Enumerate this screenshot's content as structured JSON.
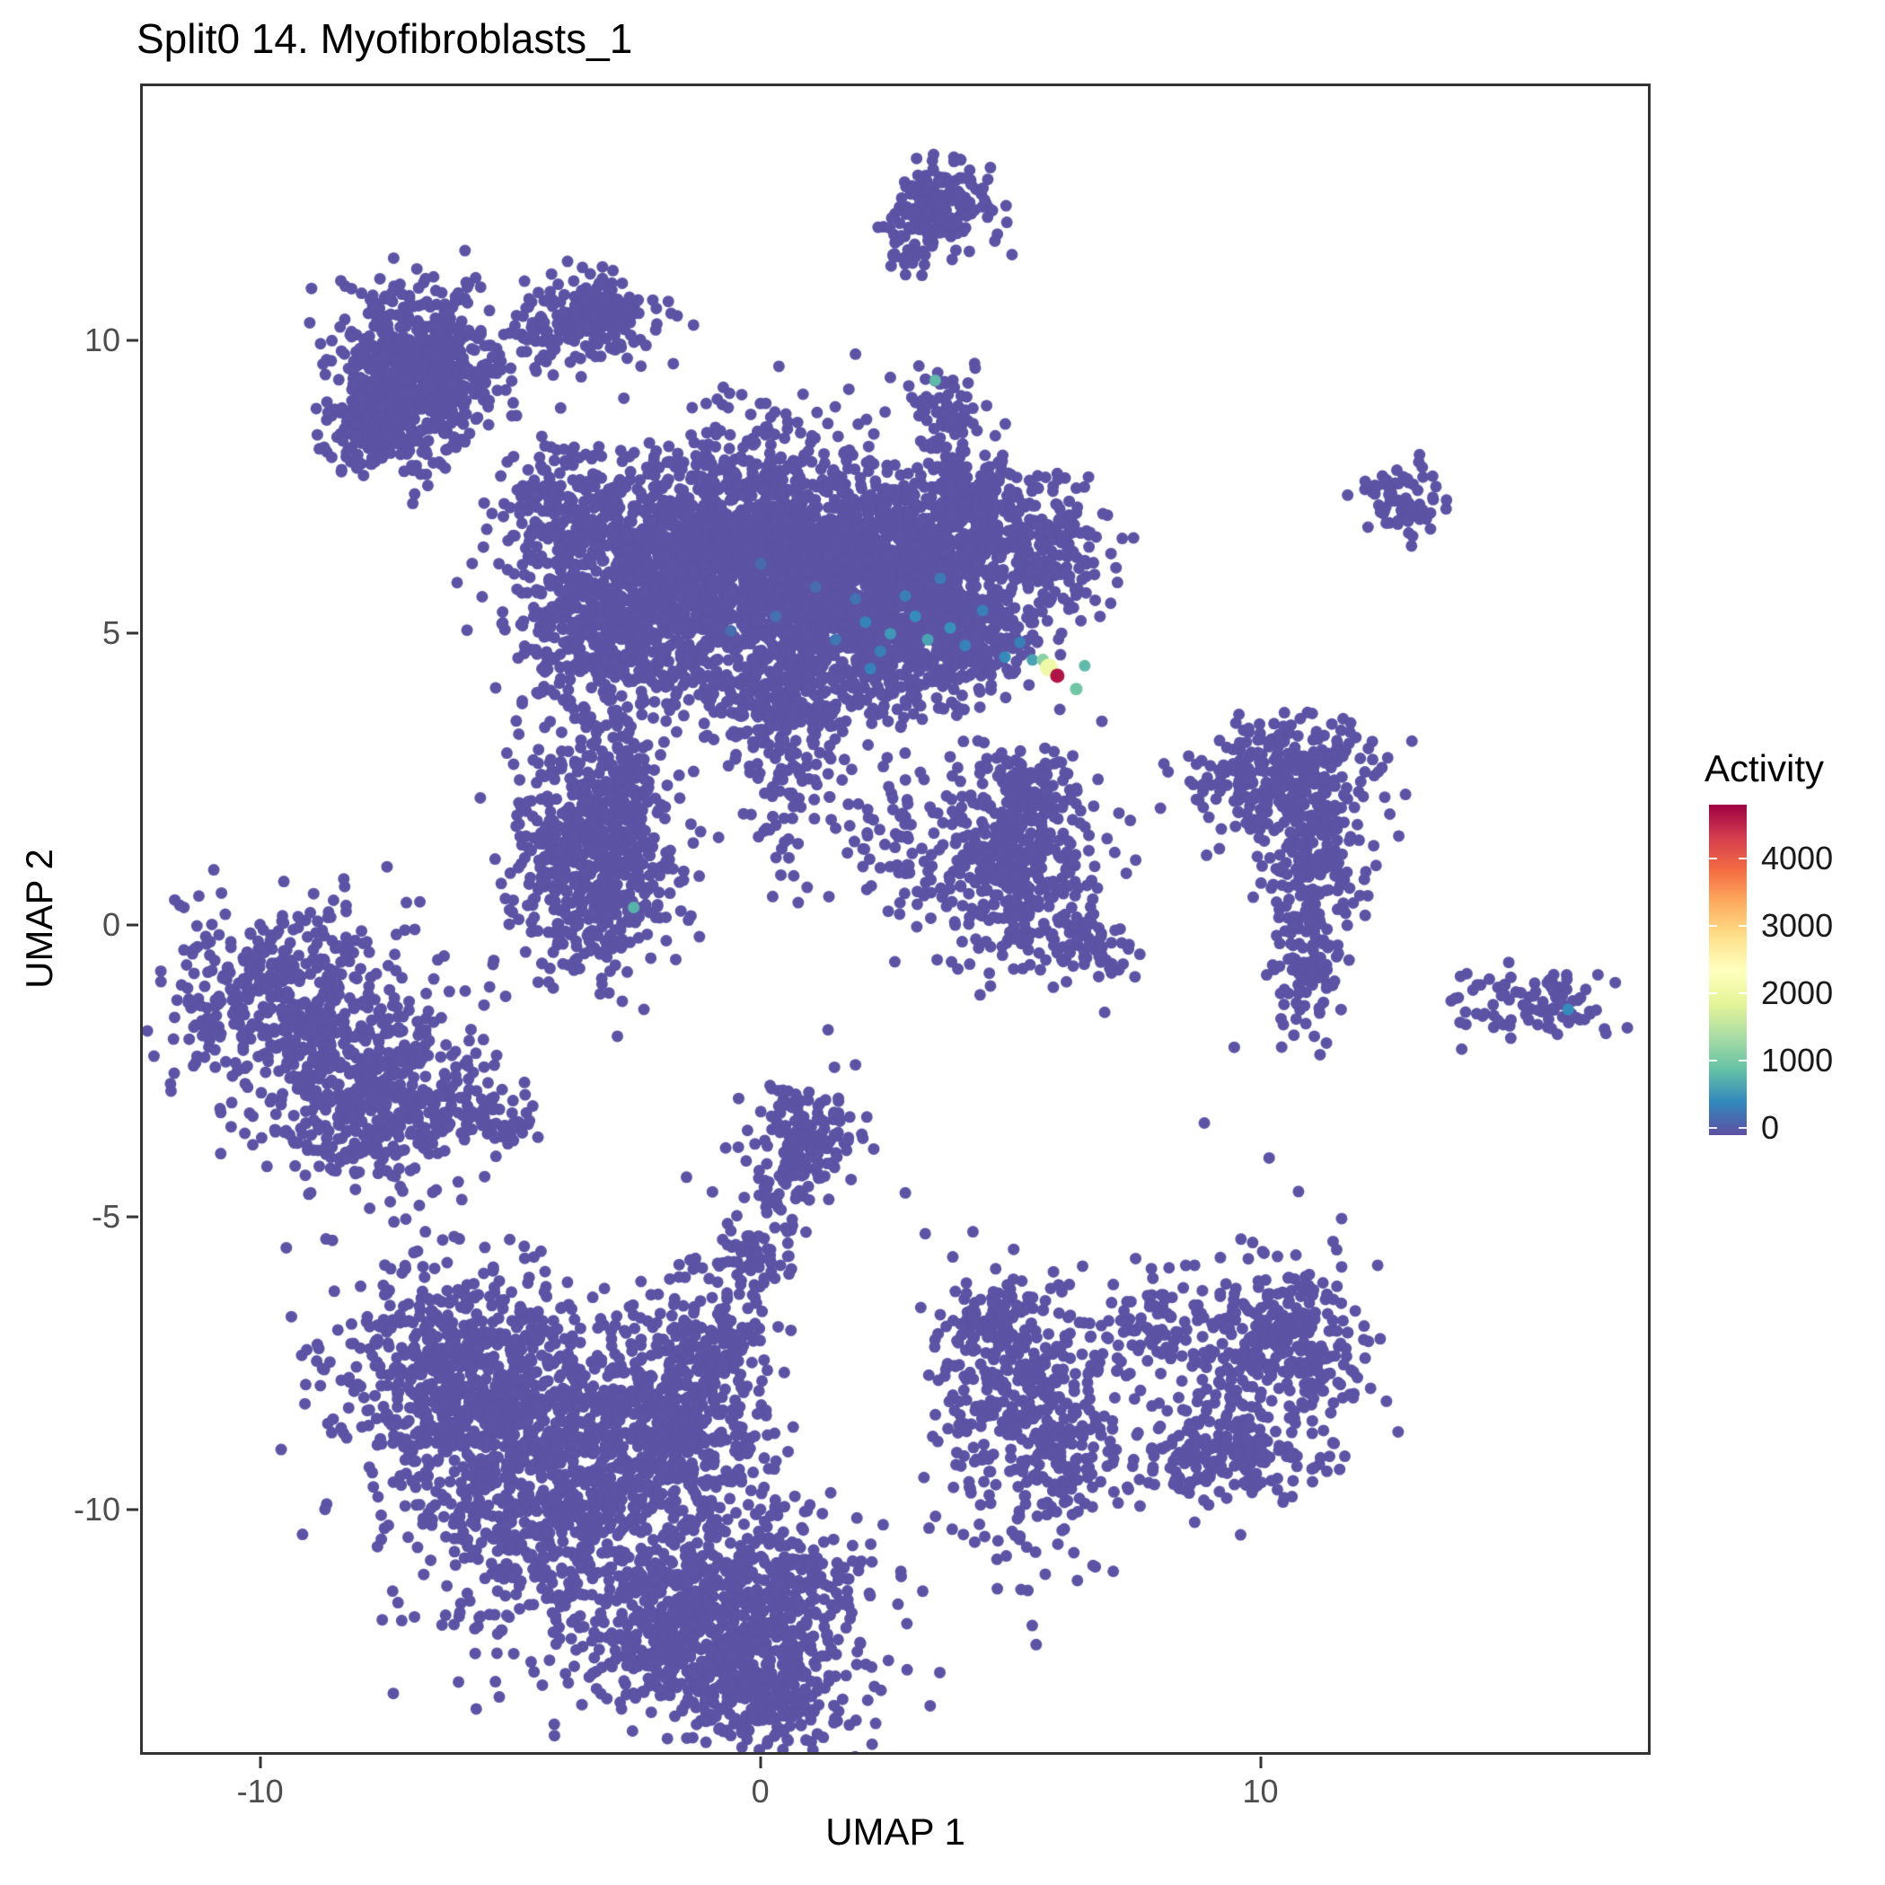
{
  "title": "Split0 14. Myofibroblasts_1",
  "axes": {
    "xlabel": "UMAP 1",
    "ylabel": "UMAP 2"
  },
  "legend": {
    "title": "Activity",
    "ticks": [
      0,
      1000,
      2000,
      3000,
      4000
    ],
    "vmin": -100,
    "vmax": 4800,
    "colormap_stops": [
      "#5e4fa2",
      "#3288bd",
      "#66c2a5",
      "#abdda4",
      "#e6f598",
      "#ffffbf",
      "#fee08b",
      "#fdae61",
      "#f46d43",
      "#d53e4f",
      "#9e0142"
    ]
  },
  "chart_data": {
    "type": "scatter",
    "title": "Split0 14. Myofibroblasts_1",
    "xlabel": "UMAP 1",
    "ylabel": "UMAP 2",
    "xlim": [
      -12.4,
      17.8
    ],
    "ylim": [
      -14.2,
      14.4
    ],
    "xticks": [
      -10,
      0,
      10
    ],
    "yticks": [
      -10,
      -5,
      0,
      5,
      10
    ],
    "grid": false,
    "legend_position": "right",
    "base_color": "#5c53a5",
    "point_radius": 6.5,
    "clusters_columns": [
      "cx",
      "cy",
      "sx",
      "sy",
      "n"
    ],
    "clusters": [
      [
        3.6,
        12.4,
        0.55,
        0.38,
        160
      ],
      [
        2.95,
        11.65,
        0.25,
        0.2,
        30
      ],
      [
        -6.9,
        9.5,
        0.85,
        0.72,
        650
      ],
      [
        -7.7,
        8.5,
        0.5,
        0.4,
        120
      ],
      [
        -3.3,
        10.4,
        0.55,
        0.4,
        170
      ],
      [
        -4.4,
        10.2,
        0.3,
        0.3,
        50
      ],
      [
        3.7,
        8.8,
        0.3,
        0.55,
        70
      ],
      [
        -3.9,
        7.2,
        0.6,
        0.5,
        180
      ],
      [
        -2.9,
        5.4,
        1.05,
        0.95,
        750
      ],
      [
        -0.4,
        6.4,
        1.35,
        1.05,
        1250
      ],
      [
        1.6,
        5.9,
        1.2,
        0.95,
        850
      ],
      [
        3.5,
        6.1,
        0.95,
        0.85,
        520
      ],
      [
        4.3,
        7.4,
        0.5,
        0.45,
        150
      ],
      [
        5.8,
        6.5,
        0.6,
        0.65,
        200
      ],
      [
        2.9,
        4.6,
        0.85,
        0.55,
        280
      ],
      [
        4.6,
        4.9,
        0.5,
        0.4,
        100
      ],
      [
        0.3,
        3.8,
        0.75,
        0.5,
        220
      ],
      [
        0.45,
        2.3,
        0.28,
        0.85,
        70
      ],
      [
        12.9,
        7.25,
        0.38,
        0.3,
        70
      ],
      [
        -3.4,
        1.1,
        0.8,
        0.95,
        620
      ],
      [
        -2.7,
        2.4,
        0.4,
        0.4,
        80
      ],
      [
        2.5,
        1.8,
        0.7,
        0.8,
        60
      ],
      [
        5.0,
        1.1,
        0.9,
        0.85,
        420
      ],
      [
        5.4,
        2.4,
        0.5,
        0.4,
        80
      ],
      [
        6.6,
        -0.3,
        0.35,
        0.3,
        60
      ],
      [
        10.5,
        2.5,
        0.95,
        0.5,
        280
      ],
      [
        11.0,
        1.0,
        0.45,
        0.8,
        200
      ],
      [
        10.9,
        -0.9,
        0.3,
        0.55,
        80
      ],
      [
        15.4,
        -1.35,
        0.8,
        0.28,
        90
      ],
      [
        -9.4,
        -1.4,
        1.25,
        0.85,
        480
      ],
      [
        -7.8,
        -2.9,
        1.0,
        0.8,
        420
      ],
      [
        -6.1,
        -3.3,
        0.6,
        0.3,
        70
      ],
      [
        -5.0,
        -3.5,
        0.3,
        0.2,
        25
      ],
      [
        0.85,
        -3.5,
        0.5,
        0.42,
        140
      ],
      [
        0.5,
        -4.5,
        0.3,
        0.4,
        50
      ],
      [
        -0.2,
        -5.7,
        0.35,
        0.6,
        70
      ],
      [
        -1.0,
        -6.9,
        0.45,
        0.7,
        90
      ],
      [
        -6.4,
        -7.6,
        1.1,
        0.95,
        480
      ],
      [
        -4.0,
        -9.2,
        1.6,
        1.4,
        1250
      ],
      [
        -1.6,
        -8.3,
        0.8,
        0.8,
        300
      ],
      [
        -0.3,
        -11.8,
        1.25,
        1.0,
        650
      ],
      [
        -1.9,
        -12.2,
        0.9,
        0.7,
        300
      ],
      [
        0.2,
        -13.2,
        0.7,
        0.4,
        150
      ],
      [
        5.5,
        -8.5,
        0.95,
        1.15,
        430
      ],
      [
        4.6,
        -6.9,
        0.5,
        0.4,
        90
      ],
      [
        10.4,
        -7.2,
        0.9,
        0.75,
        330
      ],
      [
        9.2,
        -9.0,
        1.0,
        0.5,
        200
      ],
      [
        7.8,
        -6.9,
        0.4,
        0.4,
        70
      ]
    ],
    "single_points": [
      [
        -1.8,
        10.5
      ],
      [
        -1.35,
        10.3
      ],
      [
        1.9,
        9.8
      ],
      [
        2.6,
        9.4
      ],
      [
        9.5,
        -2.1
      ],
      [
        8.9,
        -3.4
      ],
      [
        1.35,
        -1.8
      ],
      [
        1.9,
        -2.4
      ],
      [
        -7.4,
        -4.3
      ],
      [
        2.9,
        -4.6
      ],
      [
        6.0,
        3.7
      ],
      [
        4.4,
        -1.2
      ],
      [
        -11.2,
        -1.9
      ],
      [
        3.3,
        -5.3
      ],
      [
        6.9,
        -1.5
      ],
      [
        10.2,
        -4.0
      ]
    ],
    "colored_points_columns": [
      "x",
      "y",
      "activity"
    ],
    "colored_points": [
      [
        3.5,
        9.35,
        800
      ],
      [
        -2.55,
        0.3,
        750
      ],
      [
        16.2,
        -1.45,
        420
      ],
      [
        2.1,
        5.2,
        350
      ],
      [
        2.6,
        5.0,
        520
      ],
      [
        3.1,
        5.3,
        430
      ],
      [
        3.35,
        4.9,
        620
      ],
      [
        2.4,
        4.7,
        300
      ],
      [
        1.5,
        4.9,
        240
      ],
      [
        3.8,
        5.1,
        460
      ],
      [
        4.1,
        4.8,
        340
      ],
      [
        2.9,
        5.65,
        300
      ],
      [
        1.9,
        5.6,
        200
      ],
      [
        3.6,
        5.95,
        260
      ],
      [
        4.45,
        5.4,
        310
      ],
      [
        2.2,
        4.4,
        340
      ],
      [
        4.9,
        4.6,
        420
      ],
      [
        5.2,
        4.85,
        300
      ],
      [
        0.3,
        5.3,
        180
      ],
      [
        -0.6,
        5.05,
        150
      ],
      [
        6.5,
        4.45,
        820
      ],
      [
        5.45,
        4.55,
        620
      ],
      [
        1.1,
        5.8,
        160
      ],
      [
        0.0,
        6.2,
        140
      ]
    ],
    "highlight_points": [
      {
        "x": 5.66,
        "y": 4.55,
        "value": 1150,
        "r": 7
      },
      {
        "x": 5.78,
        "y": 4.42,
        "value": 2050,
        "r": 10
      },
      {
        "x": 6.33,
        "y": 4.05,
        "value": 950,
        "r": 7
      },
      {
        "x": 5.95,
        "y": 4.28,
        "value": 4650,
        "r": 8
      }
    ]
  }
}
